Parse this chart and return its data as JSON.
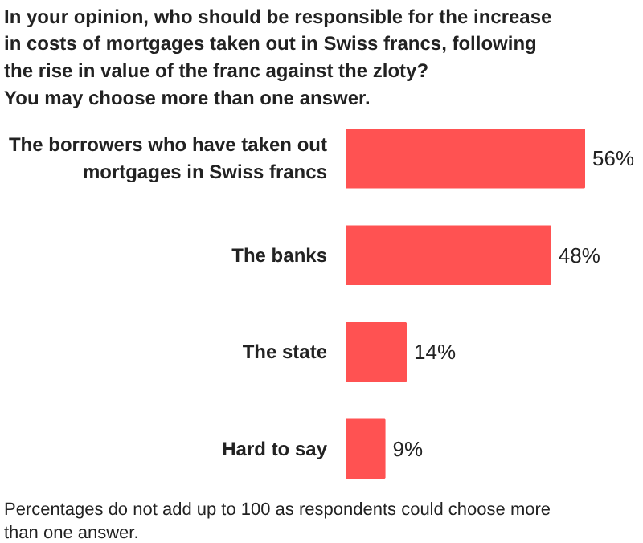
{
  "chart_data": {
    "type": "bar",
    "orientation": "horizontal",
    "title": "In your opinion, who should be responsible for the increase in costs of mortgages taken out in Swiss francs, following the rise in value of the franc against the zloty?",
    "subtitle": "You may choose more than one answer.",
    "categories": [
      "The borrowers who have taken out mortgages in Swiss francs",
      "The banks",
      "The state",
      "Hard to say"
    ],
    "values": [
      56,
      48,
      14,
      9
    ],
    "value_labels": [
      "56%",
      "48%",
      "14%",
      "9%"
    ],
    "color": "#ff5252",
    "annotations": [
      "Percentages do not add up to 100 as respondents could choose more than one answer."
    ]
  }
}
